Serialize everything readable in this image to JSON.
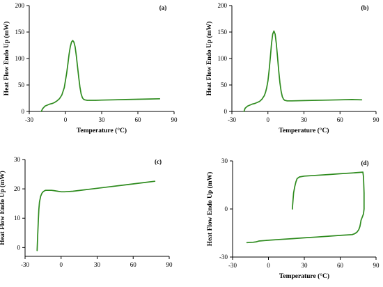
{
  "colors": {
    "line": "#2e8b1e",
    "axis": "#000000",
    "background": "#ffffff"
  },
  "chart_data": [
    {
      "type": "line",
      "panel_label": "(a)",
      "xlabel": "Temperature (°C)",
      "ylabel": "Heat Flow Endo Up (mW)",
      "xlim": [
        -30,
        90
      ],
      "ylim": [
        0,
        200
      ],
      "xticks": [
        -30,
        0,
        30,
        60,
        90
      ],
      "yticks": [
        0,
        50,
        100,
        150,
        200
      ],
      "grid": false,
      "series": [
        {
          "x": [
            -20,
            -19,
            -17,
            -15,
            -13,
            -11,
            -9,
            -7,
            -5,
            -3,
            -1,
            1,
            2,
            3,
            4,
            5,
            6,
            7,
            8,
            9,
            10,
            11,
            12,
            13,
            14,
            15,
            16,
            18,
            20,
            25,
            30,
            40,
            50,
            60,
            70,
            78
          ],
          "y": [
            0,
            5,
            10,
            12,
            14,
            15,
            17,
            20,
            24,
            31,
            45,
            72,
            90,
            108,
            122,
            131,
            134,
            131,
            122,
            105,
            85,
            64,
            46,
            33,
            26,
            23,
            22,
            21,
            21,
            21,
            21.5,
            22,
            22.5,
            23,
            23.5,
            24
          ]
        }
      ]
    },
    {
      "type": "line",
      "panel_label": "(b)",
      "xlabel": "Temperature (°C)",
      "ylabel": "Heat Flow Endo Up (mW)",
      "xlim": [
        -30,
        90
      ],
      "ylim": [
        0,
        200
      ],
      "xticks": [
        -30,
        0,
        30,
        60,
        90
      ],
      "yticks": [
        0,
        50,
        100,
        150,
        200
      ],
      "grid": false,
      "series": [
        {
          "x": [
            -20,
            -19,
            -17,
            -15,
            -13,
            -11,
            -9,
            -7,
            -5,
            -3,
            -2,
            -1,
            0,
            1,
            2,
            3,
            4,
            5,
            6,
            7,
            8,
            9,
            10,
            11,
            12,
            13,
            14,
            16,
            18,
            20,
            30,
            40,
            50,
            60,
            70,
            78
          ],
          "y": [
            0,
            6,
            10,
            12,
            14,
            15,
            17,
            19,
            23,
            30,
            36,
            45,
            58,
            78,
            102,
            128,
            146,
            152,
            146,
            128,
            102,
            76,
            54,
            38,
            28,
            23,
            21,
            20,
            20,
            20,
            20.5,
            21,
            21.5,
            22,
            22.5,
            22
          ]
        }
      ]
    },
    {
      "type": "line",
      "panel_label": "(c)",
      "xlabel": "",
      "ylabel": "Heat Flow Endo Up (mW)",
      "xlim": [
        -30,
        90
      ],
      "ylim": [
        -3,
        30
      ],
      "xticks": [
        -30,
        0,
        30,
        60,
        90
      ],
      "yticks": [
        0,
        10,
        20,
        30
      ],
      "grid": false,
      "series": [
        {
          "x": [
            -20,
            -19.5,
            -19,
            -18.5,
            -18,
            -17,
            -16,
            -15,
            -14,
            -13,
            -12,
            -11,
            -10,
            -9,
            -8,
            -6,
            -3,
            0,
            3,
            10,
            20,
            30,
            40,
            50,
            60,
            70,
            78
          ],
          "y": [
            -1,
            4,
            9,
            13,
            15.5,
            17.5,
            18.5,
            19,
            19.3,
            19.5,
            19.5,
            19.5,
            19.5,
            19.5,
            19.5,
            19.4,
            19.2,
            19,
            19,
            19.2,
            19.7,
            20.2,
            20.7,
            21.2,
            21.7,
            22.2,
            22.6
          ]
        }
      ]
    },
    {
      "type": "line",
      "panel_label": "(d)",
      "xlabel": "Temperature (°C)",
      "ylabel": "Heat Flow Endo Up (mW)",
      "xlim": [
        -30,
        90
      ],
      "ylim": [
        -30,
        30
      ],
      "xticks": [
        -30,
        0,
        30,
        60,
        90
      ],
      "yticks": [
        -30,
        0,
        30
      ],
      "grid": false,
      "series": [
        {
          "x": [
            20,
            20.5,
            21,
            22,
            23,
            24,
            26,
            30,
            40,
            50,
            60,
            70,
            79,
            79.5,
            80,
            80,
            79.5,
            78.5,
            77.5,
            77,
            76.5,
            75.5,
            74,
            72,
            70,
            60,
            50,
            40,
            30,
            20,
            10,
            0,
            -8,
            -10,
            -13,
            -18
          ],
          "y": [
            0,
            5,
            10,
            14,
            17,
            19,
            20,
            20.5,
            21,
            21.5,
            22,
            22.5,
            23,
            20,
            10,
            0,
            -3,
            -5,
            -7,
            -9,
            -11,
            -13,
            -14.5,
            -15.5,
            -16,
            -16.5,
            -17,
            -17.5,
            -18,
            -18.5,
            -19,
            -19.5,
            -20,
            -20.5,
            -20.8,
            -21
          ]
        }
      ]
    }
  ]
}
